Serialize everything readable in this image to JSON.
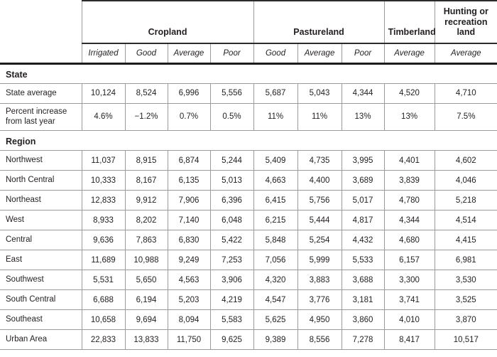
{
  "chart_data": {
    "type": "table",
    "column_groups": [
      {
        "label": "Cropland",
        "span": 4
      },
      {
        "label": "Pastureland",
        "span": 3
      },
      {
        "label": "Timberland",
        "span": 1
      },
      {
        "label": "Hunting or recreation land",
        "span": 1
      }
    ],
    "subcolumns": [
      "Irrigated",
      "Good",
      "Average",
      "Poor",
      "Good",
      "Average",
      "Poor",
      "Average",
      "Average"
    ],
    "sections": [
      {
        "title": "State",
        "rows": [
          {
            "label": "State average",
            "values": [
              "10,124",
              "8,524",
              "6,996",
              "5,556",
              "5,687",
              "5,043",
              "4,344",
              "4,520",
              "4,710"
            ]
          },
          {
            "label": "Percent increase from last year",
            "values": [
              "4.6%",
              "−1.2%",
              "0.7%",
              "0.5%",
              "11%",
              "11%",
              "13%",
              "13%",
              "7.5%"
            ]
          }
        ]
      },
      {
        "title": "Region",
        "rows": [
          {
            "label": "Northwest",
            "values": [
              "11,037",
              "8,915",
              "6,874",
              "5,244",
              "5,409",
              "4,735",
              "3,995",
              "4,401",
              "4,602"
            ]
          },
          {
            "label": "North Central",
            "values": [
              "10,333",
              "8,167",
              "6,135",
              "5,013",
              "4,663",
              "4,400",
              "3,689",
              "3,839",
              "4,046"
            ]
          },
          {
            "label": "Northeast",
            "values": [
              "12,833",
              "9,912",
              "7,906",
              "6,396",
              "6,415",
              "5,756",
              "5,017",
              "4,780",
              "5,218"
            ]
          },
          {
            "label": "West",
            "values": [
              "8,933",
              "8,202",
              "7,140",
              "6,048",
              "6,215",
              "5,444",
              "4,817",
              "4,344",
              "4,514"
            ]
          },
          {
            "label": "Central",
            "values": [
              "9,636",
              "7,863",
              "6,830",
              "5,422",
              "5,848",
              "5,254",
              "4,432",
              "4,680",
              "4,415"
            ]
          },
          {
            "label": "East",
            "values": [
              "11,689",
              "10,988",
              "9,249",
              "7,253",
              "7,056",
              "5,999",
              "5,533",
              "6,157",
              "6,981"
            ]
          },
          {
            "label": "Southwest",
            "values": [
              "5,531",
              "5,650",
              "4,563",
              "3,906",
              "4,320",
              "3,883",
              "3,688",
              "3,300",
              "3,530"
            ]
          },
          {
            "label": "South Central",
            "values": [
              "6,688",
              "6,194",
              "5,203",
              "4,219",
              "4,547",
              "3,776",
              "3,181",
              "3,741",
              "3,525"
            ]
          },
          {
            "label": "Southeast",
            "values": [
              "10,658",
              "9,694",
              "8,094",
              "5,583",
              "5,625",
              "4,950",
              "3,860",
              "4,010",
              "3,870"
            ]
          },
          {
            "label": "Urban Area",
            "values": [
              "22,833",
              "13,833",
              "11,750",
              "9,625",
              "9,389",
              "8,556",
              "7,278",
              "8,417",
              "10,517"
            ]
          }
        ]
      }
    ]
  }
}
